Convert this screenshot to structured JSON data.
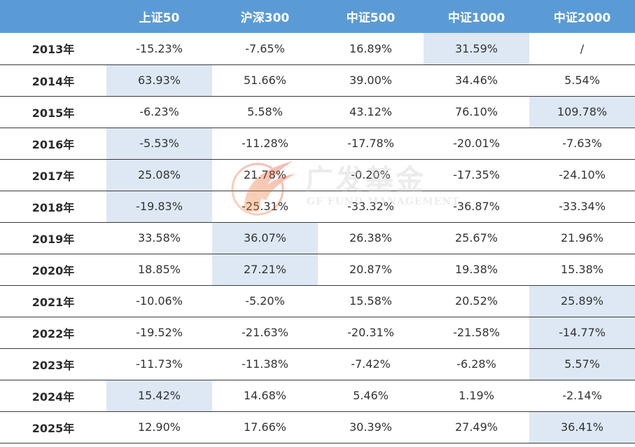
{
  "chart_data": {
    "type": "table",
    "columns": [
      "",
      "上证50",
      "沪深300",
      "中证500",
      "中证1000",
      "中证2000"
    ],
    "rows": [
      {
        "year": "2013年",
        "cells": [
          {
            "v": "-15.23%"
          },
          {
            "v": "-7.65%"
          },
          {
            "v": "16.89%"
          },
          {
            "v": "31.59%",
            "hl": true
          },
          {
            "v": "/"
          }
        ]
      },
      {
        "year": "2014年",
        "cells": [
          {
            "v": "63.93%",
            "hl": true
          },
          {
            "v": "51.66%"
          },
          {
            "v": "39.00%"
          },
          {
            "v": "34.46%"
          },
          {
            "v": "5.54%"
          }
        ]
      },
      {
        "year": "2015年",
        "cells": [
          {
            "v": "-6.23%"
          },
          {
            "v": "5.58%"
          },
          {
            "v": "43.12%"
          },
          {
            "v": "76.10%"
          },
          {
            "v": "109.78%",
            "hl": true
          }
        ]
      },
      {
        "year": "2016年",
        "cells": [
          {
            "v": "-5.53%",
            "hl": true
          },
          {
            "v": "-11.28%"
          },
          {
            "v": "-17.78%"
          },
          {
            "v": "-20.01%"
          },
          {
            "v": "-7.63%"
          }
        ]
      },
      {
        "year": "2017年",
        "cells": [
          {
            "v": "25.08%",
            "hl": true
          },
          {
            "v": "21.78%"
          },
          {
            "v": "-0.20%"
          },
          {
            "v": "-17.35%"
          },
          {
            "v": "-24.10%"
          }
        ]
      },
      {
        "year": "2018年",
        "cells": [
          {
            "v": "-19.83%",
            "hl": true
          },
          {
            "v": "-25.31%"
          },
          {
            "v": "-33.32%"
          },
          {
            "v": "-36.87%"
          },
          {
            "v": "-33.34%"
          }
        ]
      },
      {
        "year": "2019年",
        "cells": [
          {
            "v": "33.58%"
          },
          {
            "v": "36.07%",
            "hl": true
          },
          {
            "v": "26.38%"
          },
          {
            "v": "25.67%"
          },
          {
            "v": "21.96%"
          }
        ]
      },
      {
        "year": "2020年",
        "cells": [
          {
            "v": "18.85%"
          },
          {
            "v": "27.21%",
            "hl": true
          },
          {
            "v": "20.87%"
          },
          {
            "v": "19.38%"
          },
          {
            "v": "15.38%"
          }
        ]
      },
      {
        "year": "2021年",
        "cells": [
          {
            "v": "-10.06%"
          },
          {
            "v": "-5.20%"
          },
          {
            "v": "15.58%"
          },
          {
            "v": "20.52%"
          },
          {
            "v": "25.89%",
            "hl": true
          }
        ]
      },
      {
        "year": "2022年",
        "cells": [
          {
            "v": "-19.52%"
          },
          {
            "v": "-21.63%"
          },
          {
            "v": "-20.31%"
          },
          {
            "v": "-21.58%"
          },
          {
            "v": "-14.77%",
            "hl": true
          }
        ]
      },
      {
        "year": "2023年",
        "cells": [
          {
            "v": "-11.73%"
          },
          {
            "v": "-11.38%"
          },
          {
            "v": "-7.42%"
          },
          {
            "v": "-6.28%"
          },
          {
            "v": "5.57%",
            "hl": true
          }
        ]
      },
      {
        "year": "2024年",
        "cells": [
          {
            "v": "15.42%",
            "hl": true
          },
          {
            "v": "14.68%"
          },
          {
            "v": "5.46%"
          },
          {
            "v": "1.19%"
          },
          {
            "v": "-2.14%"
          }
        ]
      },
      {
        "year": "2025年",
        "cells": [
          {
            "v": "12.90%"
          },
          {
            "v": "17.66%"
          },
          {
            "v": "30.39%"
          },
          {
            "v": "27.49%"
          },
          {
            "v": "36.41%",
            "hl": true
          }
        ]
      }
    ],
    "header_color": "#5b9bd5",
    "highlight_color": "#dde8f4"
  },
  "watermark": {
    "text": "广发基金",
    "subtext": "GF FUND MANAGEMENT",
    "logo": "gf-flame-logo"
  }
}
